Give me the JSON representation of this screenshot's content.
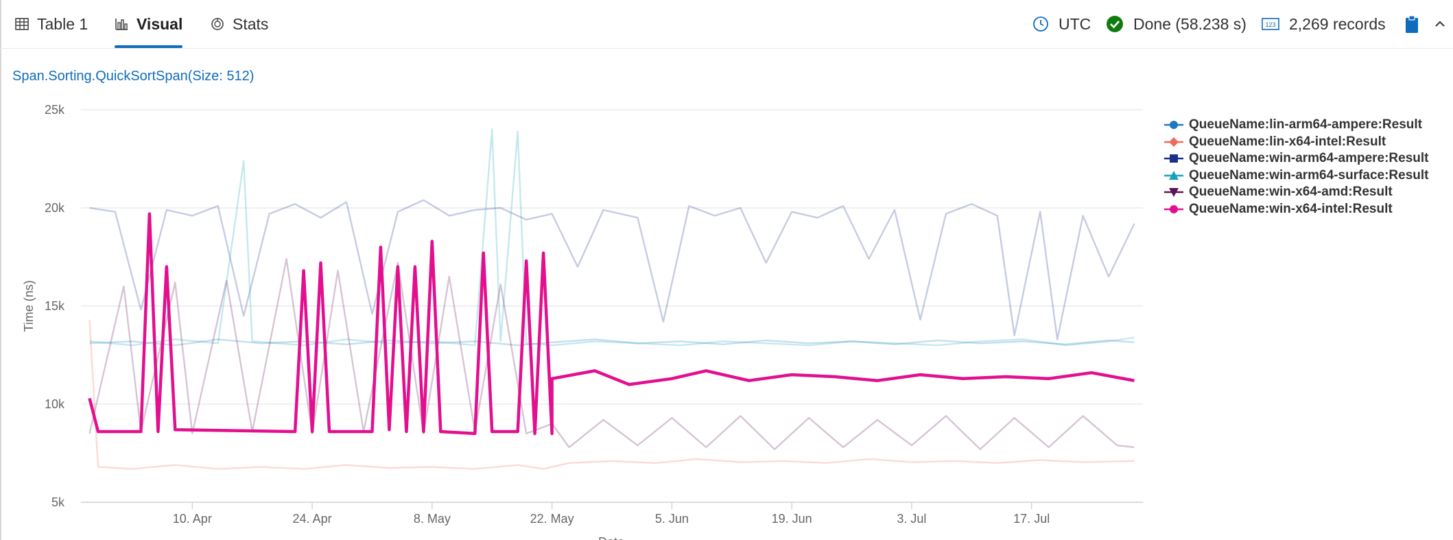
{
  "tabs": [
    {
      "label": "Table 1",
      "icon": "table-icon",
      "active": false
    },
    {
      "label": "Visual",
      "icon": "bar-chart-icon",
      "active": true
    },
    {
      "label": "Stats",
      "icon": "stats-icon",
      "active": false
    }
  ],
  "status": {
    "timezone": "UTC",
    "done": "Done (58.238 s)",
    "records": "2,269 records"
  },
  "colors": {
    "accent": "#0f6cbd",
    "done_green": "#107c10"
  },
  "chart_data": {
    "type": "line",
    "title": "Span.Sorting.QuickSortSpan(Size: 512)",
    "ylabel": "Time (ns)",
    "xlabel": "Date",
    "ylim": [
      5000,
      25000
    ],
    "xlim": [
      "2023-03-28",
      "2023-07-30"
    ],
    "yticks": [
      "5k",
      "10k",
      "15k",
      "20k",
      "25k"
    ],
    "xticks": [
      {
        "label": "10. Apr",
        "date": "2023-04-10"
      },
      {
        "label": "24. Apr",
        "date": "2023-04-24"
      },
      {
        "label": "8. May",
        "date": "2023-05-08"
      },
      {
        "label": "22. May",
        "date": "2023-05-22"
      },
      {
        "label": "5. Jun",
        "date": "2023-06-05"
      },
      {
        "label": "19. Jun",
        "date": "2023-06-19"
      },
      {
        "label": "3. Jul",
        "date": "2023-07-03"
      },
      {
        "label": "17. Jul",
        "date": "2023-07-17"
      }
    ],
    "grid": true,
    "legend_position": "right",
    "series": [
      {
        "name": "QueueName:lin-arm64-ampere:Result",
        "color": "#1f78c1",
        "marker": "circle",
        "highlighted": false,
        "points": [
          [
            "2023-03-29",
            13100
          ],
          [
            "2023-04-03",
            13200
          ],
          [
            "2023-04-08",
            13000
          ],
          [
            "2023-04-13",
            13300
          ],
          [
            "2023-04-18",
            13100
          ],
          [
            "2023-04-23",
            13200
          ],
          [
            "2023-04-28",
            13050
          ],
          [
            "2023-05-03",
            13250
          ],
          [
            "2023-05-08",
            13100
          ],
          [
            "2023-05-13",
            13200
          ],
          [
            "2023-05-18",
            13000
          ],
          [
            "2023-05-22",
            13150
          ],
          [
            "2023-05-27",
            13300
          ],
          [
            "2023-06-01",
            13100
          ],
          [
            "2023-06-06",
            13200
          ],
          [
            "2023-06-11",
            13050
          ],
          [
            "2023-06-16",
            13250
          ],
          [
            "2023-06-21",
            13100
          ],
          [
            "2023-06-26",
            13200
          ],
          [
            "2023-07-01",
            13050
          ],
          [
            "2023-07-06",
            13250
          ],
          [
            "2023-07-11",
            13100
          ],
          [
            "2023-07-16",
            13200
          ],
          [
            "2023-07-21",
            13050
          ],
          [
            "2023-07-26",
            13250
          ],
          [
            "2023-07-29",
            13150
          ]
        ]
      },
      {
        "name": "QueueName:lin-x64-intel:Result",
        "color": "#f06a5a",
        "marker": "diamond",
        "highlighted": false,
        "points": [
          [
            "2023-03-29",
            14300
          ],
          [
            "2023-03-30",
            6800
          ],
          [
            "2023-04-03",
            6700
          ],
          [
            "2023-04-08",
            6900
          ],
          [
            "2023-04-13",
            6700
          ],
          [
            "2023-04-18",
            6800
          ],
          [
            "2023-04-23",
            6700
          ],
          [
            "2023-04-28",
            6900
          ],
          [
            "2023-05-03",
            6750
          ],
          [
            "2023-05-08",
            6800
          ],
          [
            "2023-05-13",
            6700
          ],
          [
            "2023-05-18",
            6900
          ],
          [
            "2023-05-21",
            6700
          ],
          [
            "2023-05-24",
            7000
          ],
          [
            "2023-05-29",
            7100
          ],
          [
            "2023-06-03",
            7000
          ],
          [
            "2023-06-08",
            7200
          ],
          [
            "2023-06-13",
            7050
          ],
          [
            "2023-06-18",
            7100
          ],
          [
            "2023-06-23",
            7000
          ],
          [
            "2023-06-28",
            7200
          ],
          [
            "2023-07-03",
            7050
          ],
          [
            "2023-07-08",
            7100
          ],
          [
            "2023-07-13",
            7000
          ],
          [
            "2023-07-18",
            7150
          ],
          [
            "2023-07-23",
            7050
          ],
          [
            "2023-07-29",
            7100
          ]
        ]
      },
      {
        "name": "QueueName:win-arm64-ampere:Result",
        "color": "#1c2f8f",
        "marker": "square",
        "highlighted": false,
        "points": [
          [
            "2023-03-29",
            20000
          ],
          [
            "2023-04-01",
            19800
          ],
          [
            "2023-04-04",
            14800
          ],
          [
            "2023-04-07",
            19900
          ],
          [
            "2023-04-10",
            19600
          ],
          [
            "2023-04-13",
            20100
          ],
          [
            "2023-04-16",
            14500
          ],
          [
            "2023-04-19",
            19700
          ],
          [
            "2023-04-22",
            20200
          ],
          [
            "2023-04-25",
            19500
          ],
          [
            "2023-04-28",
            20300
          ],
          [
            "2023-05-01",
            14600
          ],
          [
            "2023-05-04",
            19800
          ],
          [
            "2023-05-07",
            20400
          ],
          [
            "2023-05-10",
            19600
          ],
          [
            "2023-05-13",
            19900
          ],
          [
            "2023-05-16",
            20000
          ],
          [
            "2023-05-19",
            19400
          ],
          [
            "2023-05-22",
            19700
          ],
          [
            "2023-05-25",
            17000
          ],
          [
            "2023-05-28",
            19900
          ],
          [
            "2023-06-01",
            19500
          ],
          [
            "2023-06-04",
            14200
          ],
          [
            "2023-06-07",
            20100
          ],
          [
            "2023-06-10",
            19600
          ],
          [
            "2023-06-13",
            20000
          ],
          [
            "2023-06-16",
            17200
          ],
          [
            "2023-06-19",
            19800
          ],
          [
            "2023-06-22",
            19500
          ],
          [
            "2023-06-25",
            20100
          ],
          [
            "2023-06-28",
            17400
          ],
          [
            "2023-07-01",
            19900
          ],
          [
            "2023-07-04",
            14300
          ],
          [
            "2023-07-07",
            19700
          ],
          [
            "2023-07-10",
            20200
          ],
          [
            "2023-07-13",
            19600
          ],
          [
            "2023-07-15",
            13500
          ],
          [
            "2023-07-18",
            19800
          ],
          [
            "2023-07-20",
            13300
          ],
          [
            "2023-07-23",
            19600
          ],
          [
            "2023-07-26",
            16500
          ],
          [
            "2023-07-29",
            19200
          ]
        ]
      },
      {
        "name": "QueueName:win-arm64-surface:Result",
        "color": "#17a2b8",
        "marker": "triangle",
        "highlighted": false,
        "points": [
          [
            "2023-03-29",
            13200
          ],
          [
            "2023-04-03",
            13000
          ],
          [
            "2023-04-08",
            13300
          ],
          [
            "2023-04-13",
            13100
          ],
          [
            "2023-04-16",
            22400
          ],
          [
            "2023-04-17",
            13200
          ],
          [
            "2023-04-23",
            13000
          ],
          [
            "2023-04-28",
            13300
          ],
          [
            "2023-05-03",
            13100
          ],
          [
            "2023-05-08",
            13200
          ],
          [
            "2023-05-13",
            13000
          ],
          [
            "2023-05-15",
            24000
          ],
          [
            "2023-05-16",
            13200
          ],
          [
            "2023-05-18",
            23900
          ],
          [
            "2023-05-19",
            13100
          ],
          [
            "2023-05-22",
            13000
          ],
          [
            "2023-05-27",
            13200
          ],
          [
            "2023-06-01",
            13100
          ],
          [
            "2023-06-06",
            13000
          ],
          [
            "2023-06-11",
            13200
          ],
          [
            "2023-06-16",
            13100
          ],
          [
            "2023-06-21",
            13000
          ],
          [
            "2023-06-26",
            13200
          ],
          [
            "2023-07-01",
            13100
          ],
          [
            "2023-07-06",
            13000
          ],
          [
            "2023-07-11",
            13200
          ],
          [
            "2023-07-16",
            13300
          ],
          [
            "2023-07-21",
            13000
          ],
          [
            "2023-07-26",
            13200
          ],
          [
            "2023-07-29",
            13400
          ]
        ]
      },
      {
        "name": "QueueName:win-x64-amd:Result",
        "color": "#5b1454",
        "marker": "triangle-down",
        "highlighted": false,
        "points": [
          [
            "2023-03-29",
            8500
          ],
          [
            "2023-04-02",
            16000
          ],
          [
            "2023-04-04",
            8600
          ],
          [
            "2023-04-08",
            16200
          ],
          [
            "2023-04-10",
            8500
          ],
          [
            "2023-04-14",
            16300
          ],
          [
            "2023-04-17",
            8600
          ],
          [
            "2023-04-21",
            17400
          ],
          [
            "2023-04-24",
            8500
          ],
          [
            "2023-04-27",
            16800
          ],
          [
            "2023-04-30",
            8600
          ],
          [
            "2023-05-04",
            17200
          ],
          [
            "2023-05-07",
            8500
          ],
          [
            "2023-05-10",
            16500
          ],
          [
            "2023-05-13",
            8600
          ],
          [
            "2023-05-16",
            16100
          ],
          [
            "2023-05-19",
            8500
          ],
          [
            "2023-05-22",
            9000
          ],
          [
            "2023-05-24",
            7800
          ],
          [
            "2023-05-28",
            9200
          ],
          [
            "2023-06-01",
            7900
          ],
          [
            "2023-06-05",
            9300
          ],
          [
            "2023-06-09",
            7800
          ],
          [
            "2023-06-13",
            9400
          ],
          [
            "2023-06-17",
            7700
          ],
          [
            "2023-06-21",
            9300
          ],
          [
            "2023-06-25",
            7800
          ],
          [
            "2023-06-29",
            9200
          ],
          [
            "2023-07-03",
            7900
          ],
          [
            "2023-07-07",
            9400
          ],
          [
            "2023-07-11",
            7700
          ],
          [
            "2023-07-15",
            9300
          ],
          [
            "2023-07-19",
            7800
          ],
          [
            "2023-07-23",
            9400
          ],
          [
            "2023-07-27",
            7900
          ],
          [
            "2023-07-29",
            7800
          ]
        ]
      },
      {
        "name": "QueueName:win-x64-intel:Result",
        "color": "#e20f8f",
        "marker": "circle",
        "highlighted": true,
        "points": [
          [
            "2023-03-29",
            10300
          ],
          [
            "2023-03-30",
            8600
          ],
          [
            "2023-04-04",
            8600
          ],
          [
            "2023-04-05",
            19700
          ],
          [
            "2023-04-06",
            8600
          ],
          [
            "2023-04-07",
            17000
          ],
          [
            "2023-04-08",
            8700
          ],
          [
            "2023-04-22",
            8600
          ],
          [
            "2023-04-23",
            16800
          ],
          [
            "2023-04-24",
            8600
          ],
          [
            "2023-04-25",
            17200
          ],
          [
            "2023-04-26",
            8600
          ],
          [
            "2023-05-01",
            8600
          ],
          [
            "2023-05-02",
            18000
          ],
          [
            "2023-05-03",
            8700
          ],
          [
            "2023-05-04",
            17000
          ],
          [
            "2023-05-05",
            8600
          ],
          [
            "2023-05-06",
            17000
          ],
          [
            "2023-05-07",
            8600
          ],
          [
            "2023-05-08",
            18300
          ],
          [
            "2023-05-09",
            8600
          ],
          [
            "2023-05-13",
            8500
          ],
          [
            "2023-05-14",
            17700
          ],
          [
            "2023-05-15",
            8600
          ],
          [
            "2023-05-18",
            8600
          ],
          [
            "2023-05-19",
            17300
          ],
          [
            "2023-05-20",
            8500
          ],
          [
            "2023-05-21",
            17700
          ],
          [
            "2023-05-22",
            8500
          ],
          [
            "2023-05-22",
            11300
          ],
          [
            "2023-05-27",
            11700
          ],
          [
            "2023-05-31",
            11000
          ],
          [
            "2023-06-05",
            11300
          ],
          [
            "2023-06-09",
            11700
          ],
          [
            "2023-06-14",
            11200
          ],
          [
            "2023-06-19",
            11500
          ],
          [
            "2023-06-24",
            11400
          ],
          [
            "2023-06-29",
            11200
          ],
          [
            "2023-07-04",
            11500
          ],
          [
            "2023-07-09",
            11300
          ],
          [
            "2023-07-14",
            11400
          ],
          [
            "2023-07-19",
            11300
          ],
          [
            "2023-07-24",
            11600
          ],
          [
            "2023-07-29",
            11200
          ]
        ]
      }
    ]
  }
}
